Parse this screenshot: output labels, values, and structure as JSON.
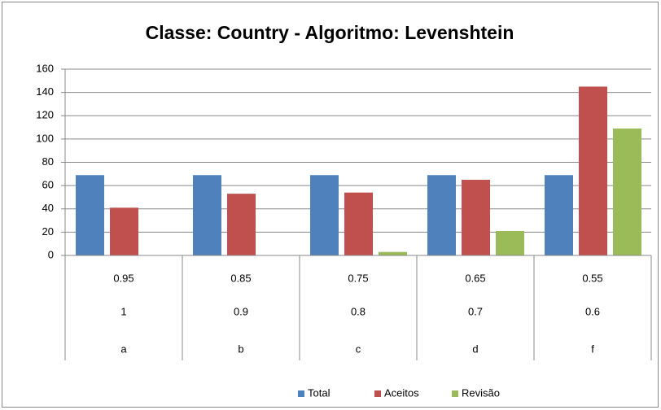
{
  "chart_data": {
    "type": "bar",
    "title": "Classe: Country - Algoritmo: Levenshtein",
    "categories": [
      [
        "0.95",
        "1",
        "a"
      ],
      [
        "0.85",
        "0.9",
        "b"
      ],
      [
        "0.75",
        "0.8",
        "c"
      ],
      [
        "0.65",
        "0.7",
        "d"
      ],
      [
        "0.55",
        "0.6",
        "f"
      ]
    ],
    "series": [
      {
        "name": "Total",
        "color": "#4f81bd",
        "values": [
          69,
          69,
          69,
          69,
          69
        ]
      },
      {
        "name": "Aceitos",
        "color": "#c0504d",
        "values": [
          41,
          53,
          54,
          65,
          145
        ]
      },
      {
        "name": "Revisão",
        "color": "#9bbb59",
        "values": [
          0,
          0,
          3,
          21,
          109
        ]
      }
    ],
    "ylim": [
      0,
      160
    ],
    "yticks": [
      0,
      20,
      40,
      60,
      80,
      100,
      120,
      140,
      160
    ],
    "grid": true,
    "legend": "bottom"
  }
}
